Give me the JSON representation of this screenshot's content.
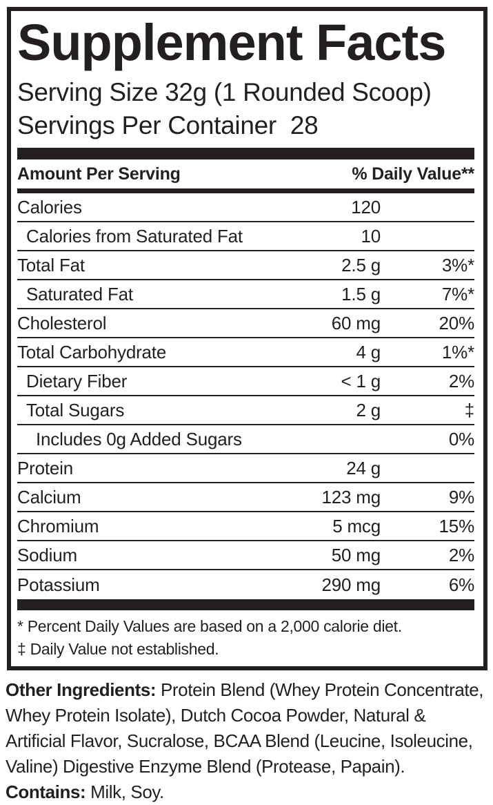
{
  "colors": {
    "ink": "#231f20",
    "background": "#ffffff"
  },
  "panel": {
    "title": "Supplement Facts",
    "serving_size": "Serving Size 32g (1 Rounded Scoop)",
    "servings_per_container": "Servings Per Container  28",
    "header": {
      "amount_label": "Amount Per Serving",
      "dv_label": "% Daily Value**"
    },
    "rows": [
      {
        "label": "Calories",
        "amount": "120",
        "dv": "",
        "indent": 0
      },
      {
        "label": "Calories from Saturated Fat",
        "amount": "10",
        "dv": "",
        "indent": 1
      },
      {
        "label": "Total Fat",
        "amount": "2.5 g",
        "dv": "3%*",
        "indent": 0
      },
      {
        "label": "Saturated Fat",
        "amount": "1.5 g",
        "dv": "7%*",
        "indent": 1
      },
      {
        "label": "Cholesterol",
        "amount": "60 mg",
        "dv": "20%",
        "indent": 0
      },
      {
        "label": "Total Carbohydrate",
        "amount": "4 g",
        "dv": "1%*",
        "indent": 0
      },
      {
        "label": "Dietary Fiber",
        "amount": "< 1 g",
        "dv": "2%",
        "indent": 1
      },
      {
        "label": "Total Sugars",
        "amount": "2 g",
        "dv": "‡",
        "indent": 1
      },
      {
        "label": "Includes 0g Added Sugars",
        "amount": "",
        "dv": "0%",
        "indent": 2
      },
      {
        "label": "Protein",
        "amount": "24 g",
        "dv": "",
        "indent": 0
      },
      {
        "label": "Calcium",
        "amount": "123 mg",
        "dv": "9%",
        "indent": 0
      },
      {
        "label": "Chromium",
        "amount": "5 mcg",
        "dv": "15%",
        "indent": 0
      },
      {
        "label": "Sodium",
        "amount": "50 mg",
        "dv": "2%",
        "indent": 0
      },
      {
        "label": "Potassium",
        "amount": "290 mg",
        "dv": "6%",
        "indent": 0
      }
    ],
    "footnotes": [
      "* Percent Daily Values are based on a 2,000 calorie diet.",
      "‡ Daily Value not established."
    ]
  },
  "other_ingredients": {
    "lines": [
      [
        {
          "bold": true,
          "text": "Other Ingredients:"
        },
        {
          "bold": false,
          "text": " Protein Blend (Whey Protein Concentrate,"
        }
      ],
      [
        {
          "bold": false,
          "text": "Whey Protein Isolate), Dutch Cocoa Powder, Natural &"
        }
      ],
      [
        {
          "bold": false,
          "text": "Artificial Flavor, Sucralose, BCAA Blend (Leucine, Isoleucine,"
        }
      ],
      [
        {
          "bold": false,
          "text": "Valine) Digestive Enzyme Blend (Protease, Papain)."
        }
      ],
      [
        {
          "bold": true,
          "text": "Contains:"
        },
        {
          "bold": false,
          "text": " Milk, Soy."
        }
      ]
    ]
  }
}
